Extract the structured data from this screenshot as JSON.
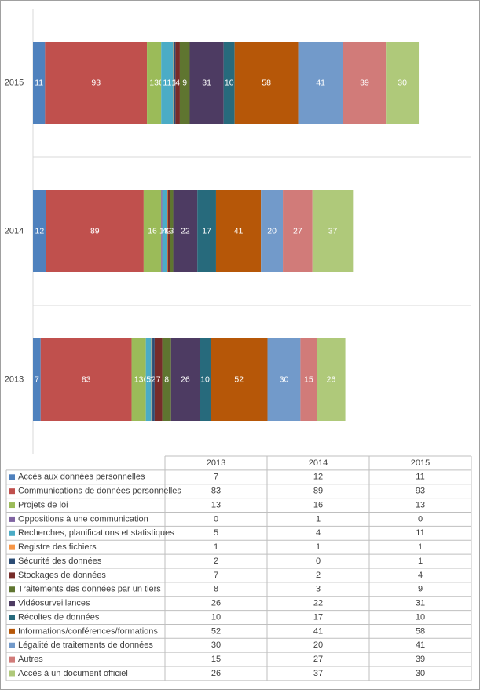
{
  "chart_data": {
    "type": "stacked-bar-horizontal",
    "categories": [
      "2013",
      "2014",
      "2015"
    ],
    "xlim": [
      0,
      400
    ],
    "series": [
      {
        "name": "Accès aux données personnelles",
        "color": "#4f81bd",
        "values": [
          7,
          12,
          11
        ]
      },
      {
        "name": "Communications de données personnelles",
        "color": "#c0504d",
        "values": [
          83,
          89,
          93
        ]
      },
      {
        "name": "Projets de loi",
        "color": "#9bbb59",
        "values": [
          13,
          16,
          13
        ]
      },
      {
        "name": "Oppositions à une communication",
        "color": "#8064a2",
        "values": [
          0,
          1,
          0
        ]
      },
      {
        "name": "Recherches, planifications et statistiques",
        "color": "#4bacc6",
        "values": [
          5,
          4,
          11
        ]
      },
      {
        "name": "Registre des fichiers",
        "color": "#f79646",
        "values": [
          1,
          1,
          1
        ]
      },
      {
        "name": "Sécurité des données",
        "color": "#2c4d75",
        "values": [
          2,
          0,
          1
        ]
      },
      {
        "name": "Stockages de données",
        "color": "#772c2a",
        "values": [
          7,
          2,
          4
        ]
      },
      {
        "name": "Traitements des données par un tiers",
        "color": "#5f7530",
        "values": [
          8,
          3,
          9
        ]
      },
      {
        "name": "Vidéosurveillances",
        "color": "#4d3b62",
        "values": [
          26,
          22,
          31
        ]
      },
      {
        "name": "Récoltes de données",
        "color": "#276a7c",
        "values": [
          10,
          17,
          10
        ]
      },
      {
        "name": "Informations/conférences/formations",
        "color": "#b65708",
        "values": [
          52,
          41,
          58
        ]
      },
      {
        "name": "Légalité de traitements de données",
        "color": "#729aca",
        "values": [
          30,
          20,
          41
        ]
      },
      {
        "name": "Autres",
        "color": "#d17b79",
        "values": [
          15,
          27,
          39
        ]
      },
      {
        "name": "Accès à un document officiel",
        "color": "#afc97a",
        "values": [
          26,
          37,
          30
        ]
      }
    ]
  }
}
